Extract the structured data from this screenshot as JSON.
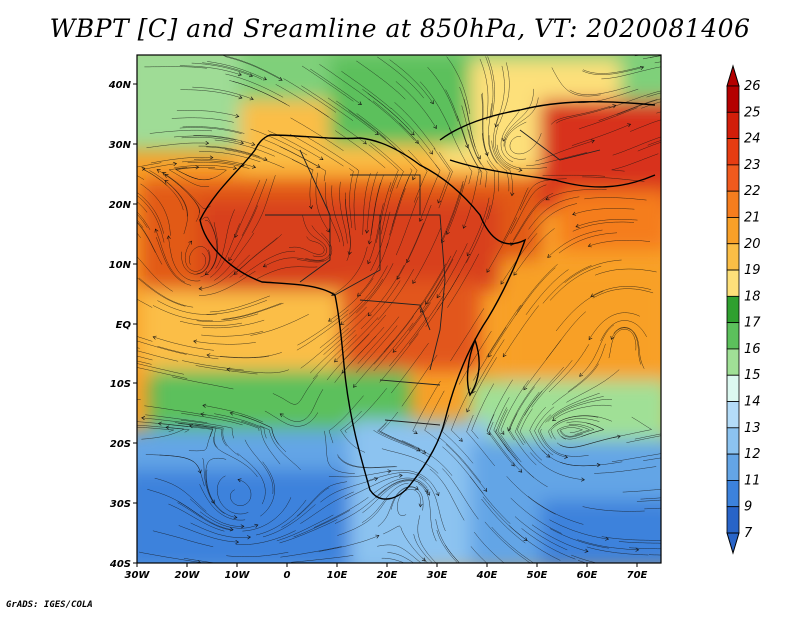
{
  "title": "WBPT [C] and Sreamline at 850hPa, VT: 2020081406",
  "credit": "GrADS: IGES/COLA",
  "map": {
    "lat_labels": [
      "40N",
      "30N",
      "20N",
      "10N",
      "EQ",
      "10S",
      "20S",
      "30S",
      "40S"
    ],
    "lon_labels": [
      "30W",
      "20W",
      "10W",
      "0",
      "10E",
      "20E",
      "30E",
      "40E",
      "50E",
      "60E",
      "70E"
    ]
  },
  "colorbar": {
    "levels": [
      "26",
      "25",
      "24",
      "23",
      "22",
      "21",
      "20",
      "19",
      "18",
      "17",
      "16",
      "15",
      "14",
      "13",
      "12",
      "11",
      "9",
      "7"
    ],
    "colors": [
      "#b40000",
      "#d21e0a",
      "#e63c12",
      "#f05a1e",
      "#f57d1e",
      "#f8a028",
      "#fbbe46",
      "#fde07a",
      "#2fa02f",
      "#5cc05c",
      "#a0e096",
      "#dcf8f0",
      "#b4dcf8",
      "#8cc3f0",
      "#64a5e6",
      "#3c82dc",
      "#2864c8"
    ]
  }
}
